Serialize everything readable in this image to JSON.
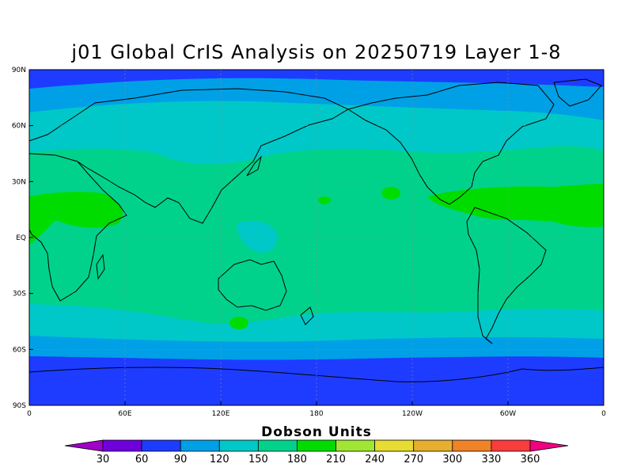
{
  "title": "j01 Global CrIS Analysis on 20250719 Layer 1-8",
  "lat_labels": [
    "90N",
    "60N",
    "30N",
    "EQ",
    "30S",
    "60S",
    "90S"
  ],
  "lon_labels": [
    "0",
    "60E",
    "120E",
    "180",
    "120W",
    "60W",
    "0"
  ],
  "colorbar": {
    "title": "Dobson Units",
    "ticks": [
      "30",
      "60",
      "90",
      "120",
      "150",
      "180",
      "210",
      "240",
      "270",
      "300",
      "330",
      "360"
    ],
    "colors": [
      "#a000c8",
      "#6e00dc",
      "#1e3cff",
      "#00a0e6",
      "#00c8c8",
      "#00d28c",
      "#00dc00",
      "#a0e632",
      "#e6dc32",
      "#e6af2d",
      "#f08228",
      "#fa3c3c",
      "#f00082"
    ]
  },
  "contour_colors": {
    "band_60_90": "#1e3cff",
    "band_90_120": "#00a0e6",
    "band_120_150": "#00c8c8",
    "band_150_180": "#00d28c",
    "band_180_210": "#00dc00"
  }
}
